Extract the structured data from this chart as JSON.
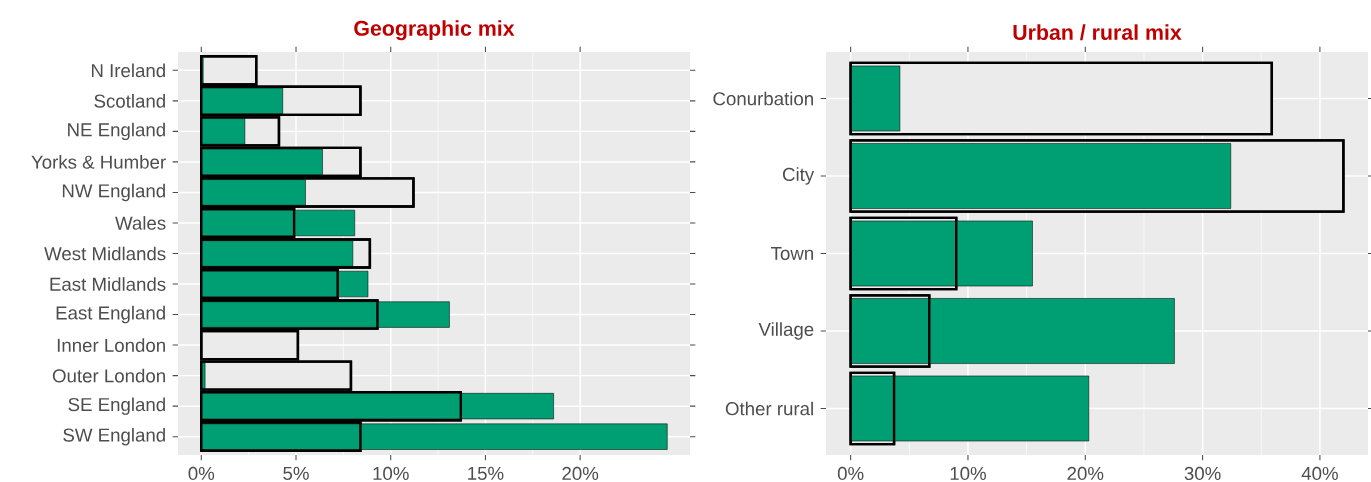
{
  "chart_data": [
    {
      "type": "bar",
      "orientation": "horizontal",
      "title": "Geographic mix",
      "categories": [
        "N Ireland",
        "Scotland",
        "NE England",
        "Yorks & Humber",
        "NW England",
        "Wales",
        "West Midlands",
        "East Midlands",
        "East England",
        "Inner London",
        "Outer London",
        "SE England",
        "SW England"
      ],
      "series": [
        {
          "color": "#009e73",
          "values": [
            0.1,
            4.3,
            2.3,
            6.4,
            5.5,
            8.1,
            8.0,
            8.8,
            13.1,
            null,
            0.2,
            18.6,
            24.6
          ]
        },
        {
          "color": "#000000",
          "values": [
            2.9,
            8.4,
            4.1,
            8.4,
            11.2,
            4.9,
            8.9,
            7.2,
            9.3,
            5.1,
            7.9,
            13.7,
            8.4
          ]
        }
      ],
      "xlim": [
        -1.23,
        25.8
      ],
      "xticks": [
        {
          "value": 0,
          "label": "0%"
        },
        {
          "value": 5,
          "label": "5%"
        },
        {
          "value": 10,
          "label": "10%"
        },
        {
          "value": 15,
          "label": "15%"
        },
        {
          "value": 20,
          "label": "20%"
        }
      ],
      "grid": true
    },
    {
      "type": "bar",
      "orientation": "horizontal",
      "title": "Urban / rural mix",
      "categories": [
        "Conurbation",
        "City",
        "Town",
        "Village",
        "Other rural"
      ],
      "series": [
        {
          "color": "#009e73",
          "values": [
            4.2,
            32.4,
            15.5,
            27.6,
            20.3
          ]
        },
        {
          "color": "#000000",
          "values": [
            35.9,
            42.0,
            9.0,
            6.7,
            3.7
          ]
        }
      ],
      "xlim": [
        -2.1,
        44.1
      ],
      "xticks": [
        {
          "value": 0,
          "label": "0%"
        },
        {
          "value": 10,
          "label": "10%"
        },
        {
          "value": 20,
          "label": "20%"
        },
        {
          "value": 30,
          "label": "30%"
        },
        {
          "value": 40,
          "label": "40%"
        }
      ],
      "grid": true
    }
  ]
}
